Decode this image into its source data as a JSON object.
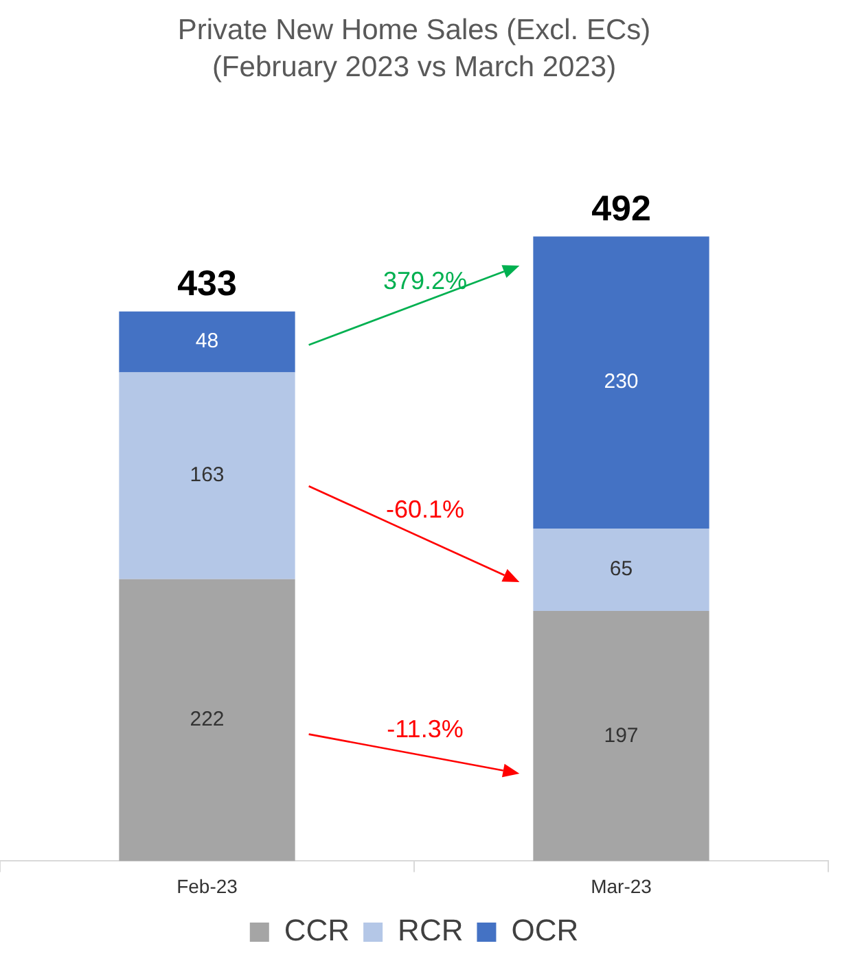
{
  "chart_data": {
    "type": "bar",
    "title": "Private New Home Sales (Excl. ECs)",
    "subtitle": "(February 2023 vs March 2023)",
    "categories": [
      "Feb-23",
      "Mar-23"
    ],
    "stacked": true,
    "series": [
      {
        "name": "CCR",
        "color": "#a5a5a5",
        "values": [
          222,
          197
        ]
      },
      {
        "name": "RCR",
        "color": "#b4c7e7",
        "values": [
          163,
          65
        ]
      },
      {
        "name": "OCR",
        "color": "#4472c4",
        "values": [
          48,
          230
        ]
      }
    ],
    "data_labels": true,
    "totals": [
      "433",
      "492"
    ],
    "annotations": [
      "379.2%",
      "-60.1%",
      "-11.3%"
    ],
    "grid": false,
    "legend": "bottom"
  }
}
